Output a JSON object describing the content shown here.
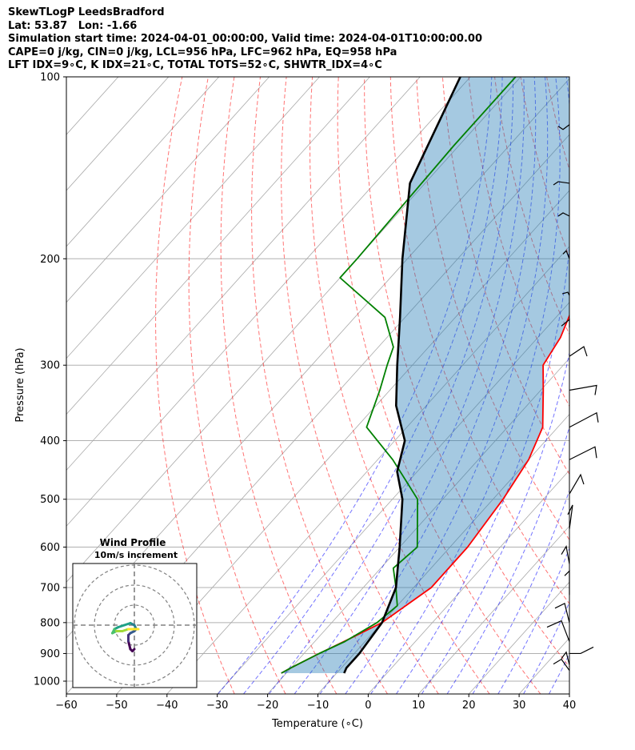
{
  "header": {
    "line1": "SkewTLogP LeedsBradford",
    "line2": "Lat: 53.87   Lon: -1.66",
    "line3": "Simulation start time: 2024-04-01_00:00:00, Valid time: 2024-04-01T10:00:00.00",
    "line4": "CAPE=0 j/kg, CIN=0 j/kg, LCL=956 hPa, LFC=962 hPa, EQ=958 hPa",
    "line5": "LFT IDX=9∘C, K IDX=21∘C, TOTAL TOTS=52∘C, SHWTR_IDX=4∘C"
  },
  "chart_data": {
    "type": "line",
    "xlabel": "Temperature (∘C)",
    "ylabel": "Pressure (hPa)",
    "xlim": [
      -60,
      40
    ],
    "ylim": [
      1050,
      100
    ],
    "y_scale": "log",
    "grid": true,
    "x_ticks": [
      -60,
      -50,
      -40,
      -30,
      -20,
      -10,
      0,
      10,
      20,
      30,
      40
    ],
    "x_tick_labels": [
      "−60",
      "−50",
      "−40",
      "−30",
      "−20",
      "−10",
      "0",
      "10",
      "20",
      "30",
      "40"
    ],
    "y_ticks": [
      100,
      200,
      300,
      400,
      500,
      600,
      700,
      800,
      900,
      1000
    ],
    "y_tick_labels": [
      "100",
      "200",
      "300",
      "400",
      "500",
      "600",
      "700",
      "800",
      "900",
      "1000"
    ],
    "series": [
      {
        "color": "#ff0000",
        "data": [
          [
            100,
            -53
          ],
          [
            110,
            -48
          ],
          [
            140,
            -42
          ],
          [
            170,
            -39
          ],
          [
            200,
            -35
          ],
          [
            240,
            -28.5
          ],
          [
            270,
            -25.5
          ],
          [
            300,
            -24
          ],
          [
            330,
            -19.5
          ],
          [
            380,
            -13
          ],
          [
            430,
            -10
          ],
          [
            500,
            -8
          ],
          [
            600,
            -6.5
          ],
          [
            700,
            -6.5
          ],
          [
            800,
            -10
          ],
          [
            850,
            -13.5
          ],
          [
            900,
            -17
          ],
          [
            950,
            -20
          ],
          [
            970,
            -21
          ]
        ]
      },
      {
        "color": "#008000",
        "data": [
          [
            100,
            -81
          ],
          [
            130,
            -81
          ],
          [
            200,
            -80
          ],
          [
            215,
            -80
          ],
          [
            250,
            -64
          ],
          [
            280,
            -57
          ],
          [
            300,
            -55
          ],
          [
            330,
            -52
          ],
          [
            380,
            -48
          ],
          [
            430,
            -37
          ],
          [
            500,
            -25
          ],
          [
            600,
            -16.5
          ],
          [
            650,
            -17.5
          ],
          [
            700,
            -13.5
          ],
          [
            750,
            -10
          ],
          [
            800,
            -11
          ],
          [
            860,
            -14
          ],
          [
            900,
            -17
          ],
          [
            950,
            -20
          ],
          [
            970,
            -21
          ]
        ]
      },
      {
        "color": "#000000",
        "data": [
          [
            100,
            -92
          ],
          [
            150,
            -83
          ],
          [
            200,
            -71
          ],
          [
            250,
            -61
          ],
          [
            300,
            -53
          ],
          [
            350,
            -46
          ],
          [
            400,
            -38
          ],
          [
            450,
            -34
          ],
          [
            500,
            -28
          ],
          [
            600,
            -20
          ],
          [
            700,
            -13.5
          ],
          [
            800,
            -10
          ],
          [
            900,
            -9
          ],
          [
            950,
            -9
          ],
          [
            970,
            -8.5
          ]
        ]
      }
    ],
    "cape_fill_color": "#1f77b4",
    "background_lines": {
      "isotherms_color": "#a9a9a9",
      "dry_adiabats_color": "#ff0000",
      "moist_adiabats_color": "#0000ff",
      "mixing_ratio_color": "#800080"
    },
    "wind_barbs": [
      {
        "pressure": 120
      },
      {
        "pressure": 150
      },
      {
        "pressure": 170
      },
      {
        "pressure": 200
      },
      {
        "pressure": 230
      },
      {
        "pressure": 260
      },
      {
        "pressure": 290
      },
      {
        "pressure": 330
      },
      {
        "pressure": 380
      },
      {
        "pressure": 430
      },
      {
        "pressure": 490
      },
      {
        "pressure": 560
      },
      {
        "pressure": 640
      },
      {
        "pressure": 720
      },
      {
        "pressure": 800
      },
      {
        "pressure": 860
      },
      {
        "pressure": 900
      },
      {
        "pressure": 940
      },
      {
        "pressure": 960
      }
    ],
    "hodograph": {
      "title": "Wind Profile",
      "subtitle": "10m/s increment",
      "ring_increment": 10,
      "rings": [
        10,
        20,
        30
      ],
      "u": [
        0,
        -1,
        -2,
        -3,
        -3,
        -2,
        0,
        1,
        0,
        -2,
        -5,
        -8,
        -10,
        -11,
        -9,
        -6,
        -3,
        0,
        2
      ],
      "v": [
        -12,
        -13,
        -12,
        -8,
        -5,
        -4,
        -3,
        -2,
        0,
        1,
        0,
        -1,
        -2,
        -4,
        -3,
        -3,
        -2,
        -2,
        -2
      ]
    }
  }
}
